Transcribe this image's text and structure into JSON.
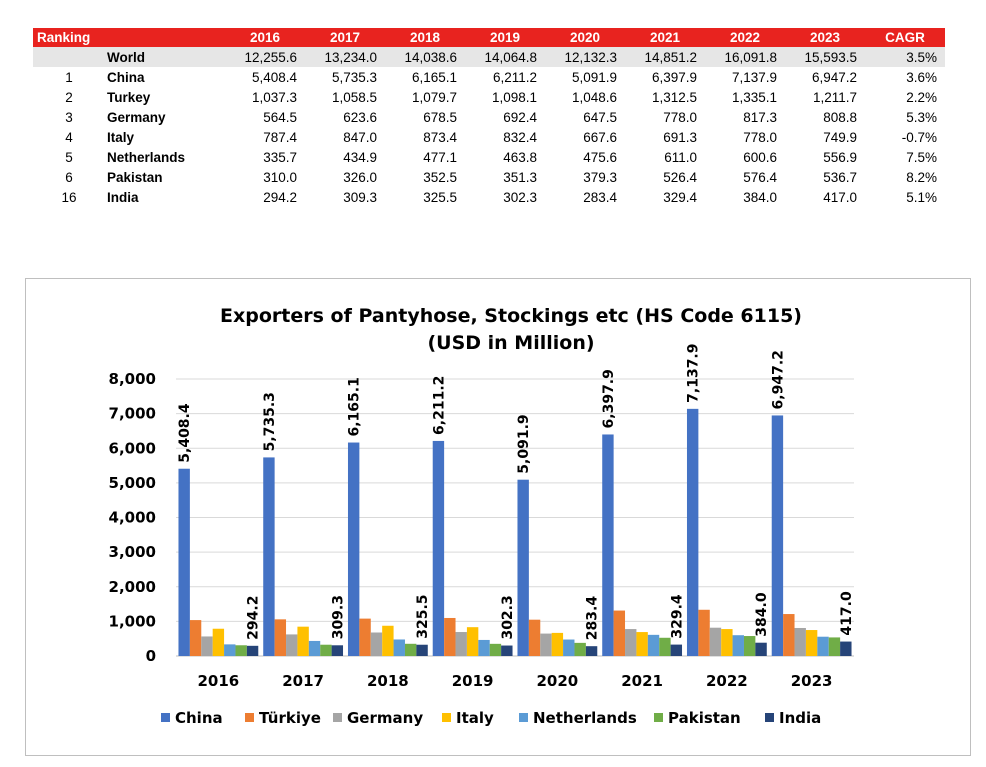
{
  "table": {
    "headers": [
      "Ranking",
      "",
      "2016",
      "2017",
      "2018",
      "2019",
      "2020",
      "2021",
      "2022",
      "2023",
      "CAGR"
    ],
    "rows": [
      [
        "",
        "World",
        "12,255.6",
        "13,234.0",
        "14,038.6",
        "14,064.8",
        "12,132.3",
        "14,851.2",
        "16,091.8",
        "15,593.5",
        "3.5%"
      ],
      [
        "1",
        "China",
        "5,408.4",
        "5,735.3",
        "6,165.1",
        "6,211.2",
        "5,091.9",
        "6,397.9",
        "7,137.9",
        "6,947.2",
        "3.6%"
      ],
      [
        "2",
        "Turkey",
        "1,037.3",
        "1,058.5",
        "1,079.7",
        "1,098.1",
        "1,048.6",
        "1,312.5",
        "1,335.1",
        "1,211.7",
        "2.2%"
      ],
      [
        "3",
        "Germany",
        "564.5",
        "623.6",
        "678.5",
        "692.4",
        "647.5",
        "778.0",
        "817.3",
        "808.8",
        "5.3%"
      ],
      [
        "4",
        "Italy",
        "787.4",
        "847.0",
        "873.4",
        "832.4",
        "667.6",
        "691.3",
        "778.0",
        "749.9",
        "-0.7%"
      ],
      [
        "5",
        "Netherlands",
        "335.7",
        "434.9",
        "477.1",
        "463.8",
        "475.6",
        "611.0",
        "600.6",
        "556.9",
        "7.5%"
      ],
      [
        "6",
        "Pakistan",
        "310.0",
        "326.0",
        "352.5",
        "351.3",
        "379.3",
        "526.4",
        "576.4",
        "536.7",
        "8.2%"
      ],
      [
        "16",
        "India",
        "294.2",
        "309.3",
        "325.5",
        "302.3",
        "283.4",
        "329.4",
        "384.0",
        "417.0",
        "5.1%"
      ]
    ]
  },
  "chart_data": {
    "type": "bar",
    "title": "Exporters of Pantyhose, Stockings etc (HS Code 6115)",
    "subtitle": "(USD in Million)",
    "categories": [
      "2016",
      "2017",
      "2018",
      "2019",
      "2020",
      "2021",
      "2022",
      "2023"
    ],
    "ylim": [
      0,
      8000
    ],
    "yticks": [
      0,
      1000,
      2000,
      3000,
      4000,
      5000,
      6000,
      7000,
      8000
    ],
    "ytick_labels": [
      "0",
      "1,000",
      "2,000",
      "3,000",
      "4,000",
      "5,000",
      "6,000",
      "7,000",
      "8,000"
    ],
    "grid": true,
    "legend_position": "bottom",
    "data_labels_series": [
      "China",
      "India"
    ],
    "series": [
      {
        "name": "China",
        "color": "#4472c4",
        "values": [
          5408.4,
          5735.3,
          6165.1,
          6211.2,
          5091.9,
          6397.9,
          7137.9,
          6947.2
        ],
        "labels": [
          "5,408.4",
          "5,735.3",
          "6,165.1",
          "6,211.2",
          "5,091.9",
          "6,397.9",
          "7,137.9",
          "6,947.2"
        ]
      },
      {
        "name": "Türkiye",
        "color": "#ed7d31",
        "values": [
          1037.3,
          1058.5,
          1079.7,
          1098.1,
          1048.6,
          1312.5,
          1335.1,
          1211.7
        ]
      },
      {
        "name": "Germany",
        "color": "#a5a5a5",
        "values": [
          564.5,
          623.6,
          678.5,
          692.4,
          647.5,
          778.0,
          817.3,
          808.8
        ]
      },
      {
        "name": "Italy",
        "color": "#ffc000",
        "values": [
          787.4,
          847.0,
          873.4,
          832.4,
          667.6,
          691.3,
          778.0,
          749.9
        ]
      },
      {
        "name": "Netherlands",
        "color": "#5b9bd5",
        "values": [
          335.7,
          434.9,
          477.1,
          463.8,
          475.6,
          611.0,
          600.6,
          556.9
        ]
      },
      {
        "name": "Pakistan",
        "color": "#70ad47",
        "values": [
          310.0,
          326.0,
          352.5,
          351.3,
          379.3,
          526.4,
          576.4,
          536.7
        ]
      },
      {
        "name": "India",
        "color": "#264478",
        "values": [
          294.2,
          309.3,
          325.5,
          302.3,
          283.4,
          329.4,
          384.0,
          417.0
        ],
        "labels": [
          "294.2",
          "309.3",
          "325.5",
          "302.3",
          "283.4",
          "329.4",
          "384.0",
          "417.0"
        ]
      }
    ]
  }
}
